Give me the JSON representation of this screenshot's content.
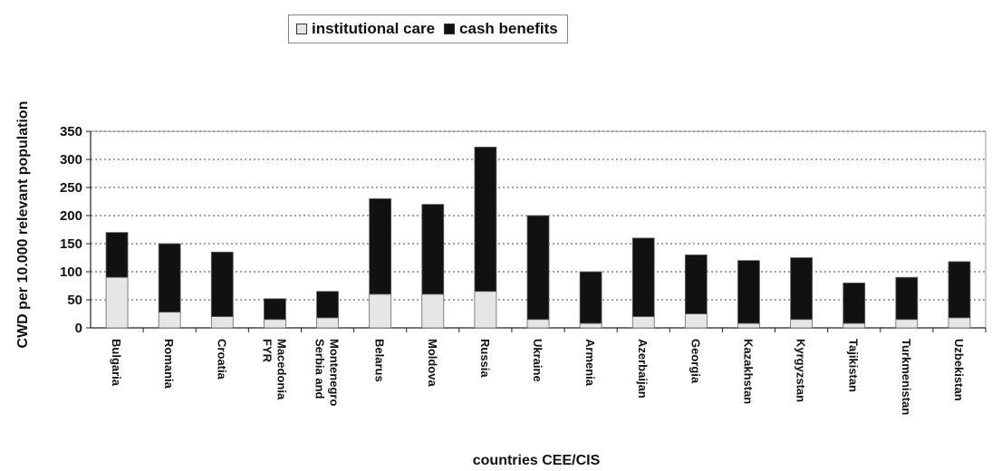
{
  "chart_data": {
    "type": "bar",
    "stacked": true,
    "categories": [
      "Bulgaria",
      "Romania",
      "Croatia",
      "FYR Macedonia",
      "Serbia and Montenegro",
      "Belarus",
      "Moldova",
      "Russia",
      "Ukraine",
      "Armenia",
      "Azerbaijan",
      "Georgia",
      "Kazakhstan",
      "Kyrgyzstan",
      "Tajikistan",
      "Turkmenistan",
      "Uzbekistan"
    ],
    "category_lines": [
      [
        "Bulgaria"
      ],
      [
        "Romania"
      ],
      [
        "Croatia"
      ],
      [
        "FYR",
        "Macedonia"
      ],
      [
        "Serbia and",
        "Montenegro"
      ],
      [
        "Belarus"
      ],
      [
        "Moldova"
      ],
      [
        "Russia"
      ],
      [
        "Ukraine"
      ],
      [
        "Armenia"
      ],
      [
        "Azerbaijan"
      ],
      [
        "Georgia"
      ],
      [
        "Kazakhstan"
      ],
      [
        "Kyrgyzstan"
      ],
      [
        "Tajikistan"
      ],
      [
        "Turkmenistan"
      ],
      [
        "Uzbekistan"
      ]
    ],
    "series": [
      {
        "name": "institutional care",
        "color": "#e6e6e6",
        "values": [
          90,
          28,
          20,
          15,
          18,
          60,
          60,
          65,
          15,
          8,
          20,
          25,
          8,
          15,
          8,
          15,
          18
        ]
      },
      {
        "name": "cash benefits",
        "color": "#111111",
        "values": [
          80,
          122,
          115,
          37,
          47,
          170,
          160,
          257,
          185,
          92,
          140,
          105,
          112,
          110,
          72,
          75,
          100
        ]
      }
    ],
    "xlabel": "countries CEE/CIS",
    "ylabel": "CWD per 10.000 relevant population",
    "ylim": [
      0,
      350
    ],
    "yticks": [
      0,
      50,
      100,
      150,
      200,
      250,
      300,
      350
    ],
    "grid": true,
    "legend_position": "top"
  }
}
